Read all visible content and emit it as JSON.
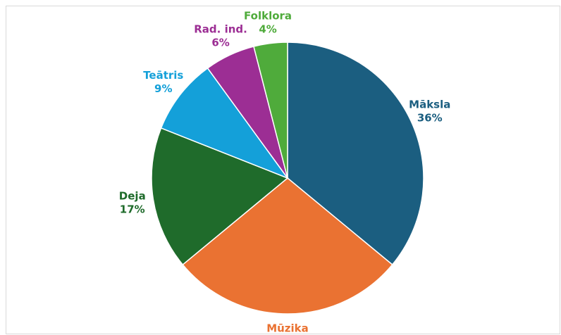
{
  "chart_data": {
    "type": "pie",
    "categories": [
      "Māksla",
      "Mūzika",
      "Deja",
      "Teātris",
      "Rad. ind.",
      "Folklora"
    ],
    "values": [
      36,
      28,
      17,
      9,
      6,
      4
    ],
    "value_labels": [
      "36%",
      "28%",
      "17%",
      "9%",
      "6%",
      "4%"
    ],
    "colors": [
      "#1b5e80",
      "#ea7232",
      "#1f6b2b",
      "#14a0d9",
      "#9c2e94",
      "#4fab3b"
    ]
  }
}
